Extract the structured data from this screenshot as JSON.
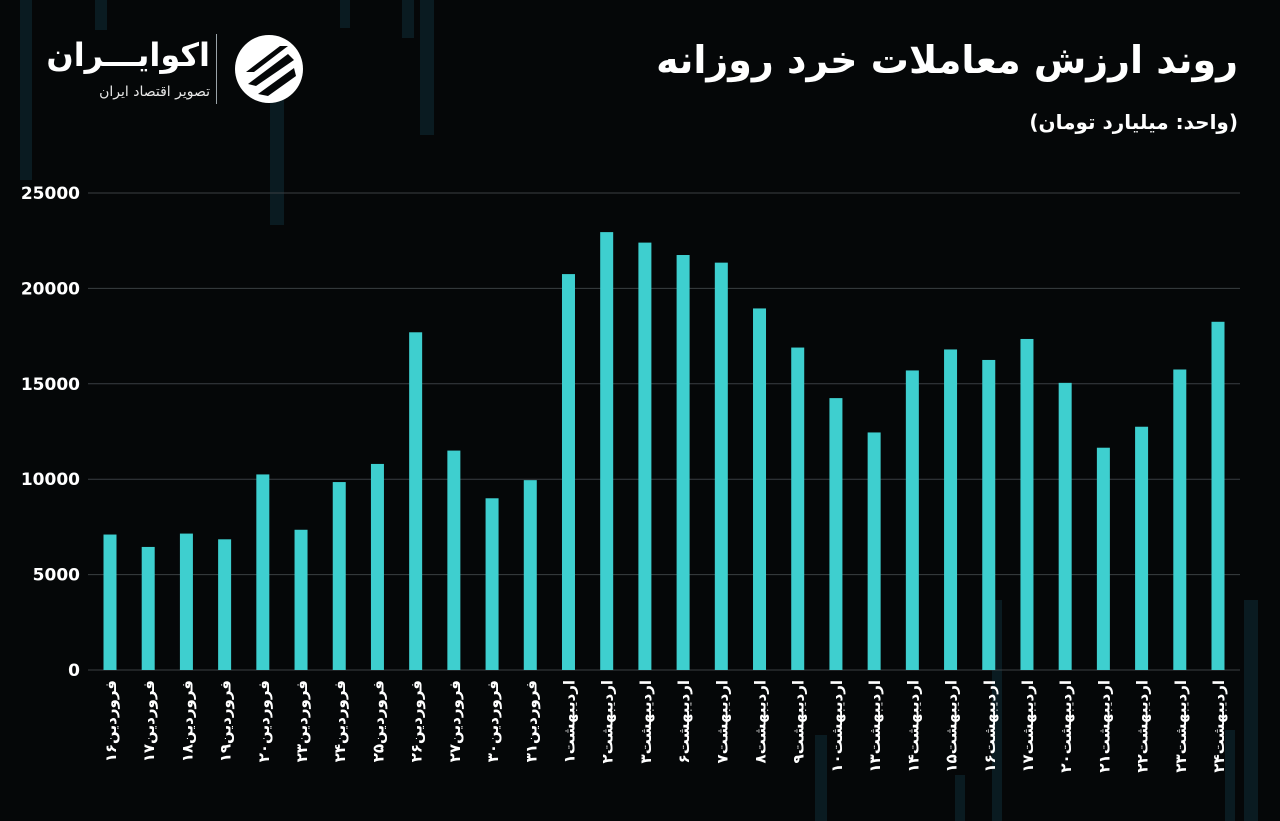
{
  "header": {
    "title": "روند ارزش معاملات خرد روزانه",
    "subtitle": "(واحد: میلیارد تومان)"
  },
  "logo": {
    "name": "اکوایـــران",
    "tagline": "تصویر اقتصاد ایران",
    "icon": "ecoiran-logo-icon"
  },
  "colors": {
    "background": "#050708",
    "bar": "#3ECFCF",
    "grid": "#3a3f42",
    "text": "#ffffff"
  },
  "chart_data": {
    "type": "bar",
    "title": "روند ارزش معاملات خرد روزانه",
    "ylabel": "(واحد: میلیارد تومان)",
    "xlabel": "",
    "ylim": [
      0,
      25000
    ],
    "yticks": [
      0,
      5000,
      10000,
      15000,
      20000,
      25000
    ],
    "ytick_labels": [
      "0",
      "5000",
      "10000",
      "15000",
      "20000",
      "25000"
    ],
    "grid": true,
    "categories": [
      "فروردین۱۶",
      "فروردین۱۷",
      "فروردین۱۸",
      "فروردین۱۹",
      "فروردین۲۰",
      "فروردین۲۳",
      "فروردین۲۴",
      "فروردین۲۵",
      "فروردین۲۶",
      "فروردین۲۷",
      "فروردین۳۰",
      "فروردین۳۱",
      "اردیبهشت۱",
      "اردیبهشت۲",
      "اردیبهشت۳",
      "اردیبهشت۶",
      "اردیبهشت۷",
      "اردیبهشت۸",
      "اردیبهشت۹",
      "اردیبهشت۱۰",
      "اردیبهشت۱۳",
      "اردیبهشت۱۴",
      "اردیبهشت۱۵",
      "اردیبهشت۱۶",
      "اردیبهشت۱۷",
      "اردیبهشت۲۰",
      "اردیبهشت۲۱",
      "اردیبهشت۲۲",
      "اردیبهشت۲۳",
      "اردیبهشت۲۴"
    ],
    "values": [
      7100,
      6450,
      7150,
      6850,
      10250,
      7350,
      9850,
      10800,
      17700,
      11500,
      9000,
      9950,
      20750,
      22950,
      22400,
      21750,
      21350,
      18950,
      16900,
      14250,
      12450,
      15700,
      16800,
      16250,
      17350,
      15050,
      11650,
      12750,
      15750,
      18250
    ]
  }
}
